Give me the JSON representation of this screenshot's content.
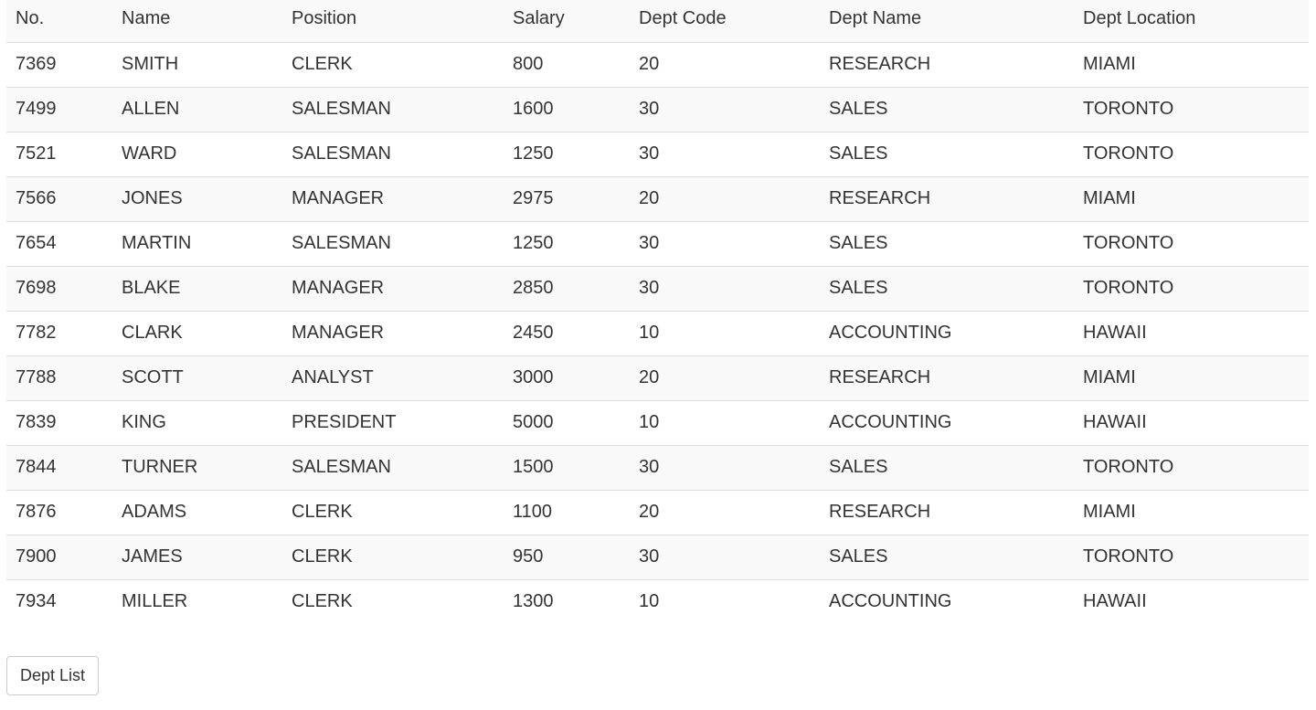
{
  "table": {
    "headers": [
      "No.",
      "Name",
      "Position",
      "Salary",
      "Dept Code",
      "Dept Name",
      "Dept Location"
    ],
    "rows": [
      [
        "7369",
        "SMITH",
        "CLERK",
        "800",
        "20",
        "RESEARCH",
        "MIAMI"
      ],
      [
        "7499",
        "ALLEN",
        "SALESMAN",
        "1600",
        "30",
        "SALES",
        "TORONTO"
      ],
      [
        "7521",
        "WARD",
        "SALESMAN",
        "1250",
        "30",
        "SALES",
        "TORONTO"
      ],
      [
        "7566",
        "JONES",
        "MANAGER",
        "2975",
        "20",
        "RESEARCH",
        "MIAMI"
      ],
      [
        "7654",
        "MARTIN",
        "SALESMAN",
        "1250",
        "30",
        "SALES",
        "TORONTO"
      ],
      [
        "7698",
        "BLAKE",
        "MANAGER",
        "2850",
        "30",
        "SALES",
        "TORONTO"
      ],
      [
        "7782",
        "CLARK",
        "MANAGER",
        "2450",
        "10",
        "ACCOUNTING",
        "HAWAII"
      ],
      [
        "7788",
        "SCOTT",
        "ANALYST",
        "3000",
        "20",
        "RESEARCH",
        "MIAMI"
      ],
      [
        "7839",
        "KING",
        "PRESIDENT",
        "5000",
        "10",
        "ACCOUNTING",
        "HAWAII"
      ],
      [
        "7844",
        "TURNER",
        "SALESMAN",
        "1500",
        "30",
        "SALES",
        "TORONTO"
      ],
      [
        "7876",
        "ADAMS",
        "CLERK",
        "1100",
        "20",
        "RESEARCH",
        "MIAMI"
      ],
      [
        "7900",
        "JAMES",
        "CLERK",
        "950",
        "30",
        "SALES",
        "TORONTO"
      ],
      [
        "7934",
        "MILLER",
        "CLERK",
        "1300",
        "10",
        "ACCOUNTING",
        "HAWAII"
      ]
    ]
  },
  "actions": {
    "dept_list_label": "Dept List"
  },
  "colors": {
    "stripe": "#f9f9f9",
    "border": "#dddddd",
    "text": "#333333"
  }
}
